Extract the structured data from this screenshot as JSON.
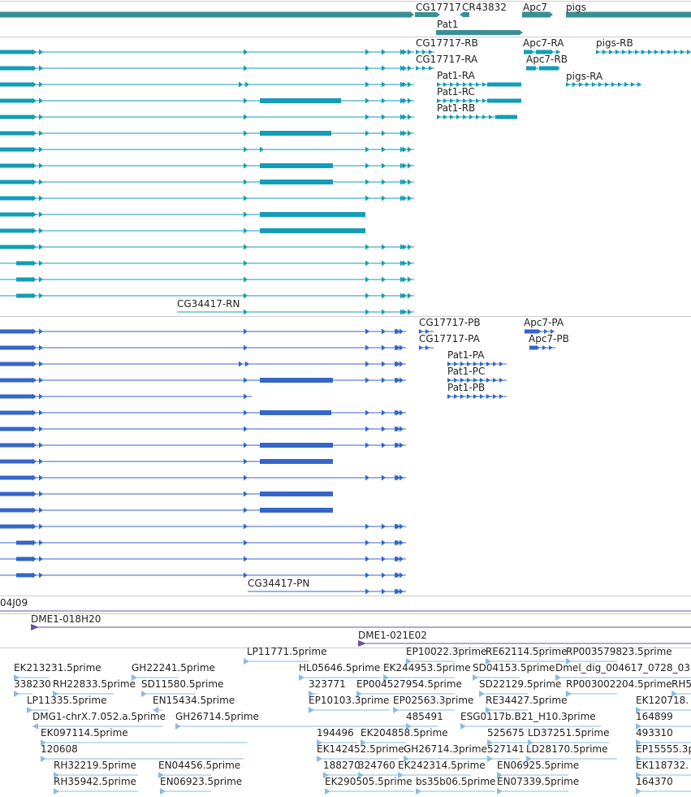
{
  "colors": {
    "gene_bar": "#3a8f97",
    "transcript_teal": "#139db6",
    "transcript_blue": "#3566c8",
    "clone": "#6a50a6",
    "est": "#8fbadf",
    "divider": "#cccccc",
    "text": "#222222"
  },
  "genes_track": {
    "labels": [
      "CG17717",
      "CR43832",
      "Apc7",
      "pigs",
      "Pat1"
    ]
  },
  "transcripts_teal": {
    "labels": [
      "CG17717-RB",
      "CG17717-RA",
      "Apc7-RA",
      "Apc7-RB",
      "pigs-RB",
      "pigs-RA",
      "Pat1-RA",
      "Pat1-RC",
      "Pat1-RB",
      "CG34417-RN"
    ]
  },
  "transcripts_blue": {
    "labels": [
      "CG17717-PB",
      "CG17717-PA",
      "Apc7-PA",
      "Apc7-PB",
      "Pat1-PA",
      "Pat1-PC",
      "Pat1-PB",
      "CG34417-PN"
    ]
  },
  "clones": {
    "labels": [
      "04J09",
      "DME1-018H20",
      "DME1-021E02"
    ]
  },
  "ests": {
    "labels": [
      "LP11771.5prime",
      "EP10022.3prime",
      "RE62114.5prime",
      "RP003579823.5prime",
      "EK213231.5prime",
      "GH22241.5prime",
      "HL05646.5prime",
      "EK244953.5prime",
      "SD04153.5prime",
      "Dmel_dig_004617_0728_03",
      "338230",
      "RH22833.5prime",
      "SD11580.5prime",
      "323771",
      "EP004527954.5prime",
      "SD22129.5prime",
      "RP003002204.5prime",
      "RH5",
      "LP11335.5prime",
      "EN15434.5prime",
      "EP10103.3prime",
      "EP02563.3prime",
      "RE34427.5prime",
      "EK120718.",
      "DMG1-chrX.7.052.a.5prime",
      "GH26714.5prime",
      "485491",
      "ESG0117b.B21_H10.3prime",
      "164899",
      "EK097114.5prime",
      "194496",
      "EK204858.5prime",
      "525675",
      "LD37251.5prime",
      "493310",
      "120608",
      "EK142452.5prime",
      "GH26714.3prime",
      "527141",
      "LD28170.5prime",
      "EP15555.3p",
      "RH32219.5prime",
      "EN04456.5prime",
      "188270",
      "324760",
      "EK242314.5prime",
      "EN06925.5prime",
      "EK118732.",
      "RH35942.5prime",
      "EN06923.5prime",
      "EK290505.5prime",
      "bs35b06.5prime",
      "EN07339.5prime",
      "164370"
    ]
  }
}
